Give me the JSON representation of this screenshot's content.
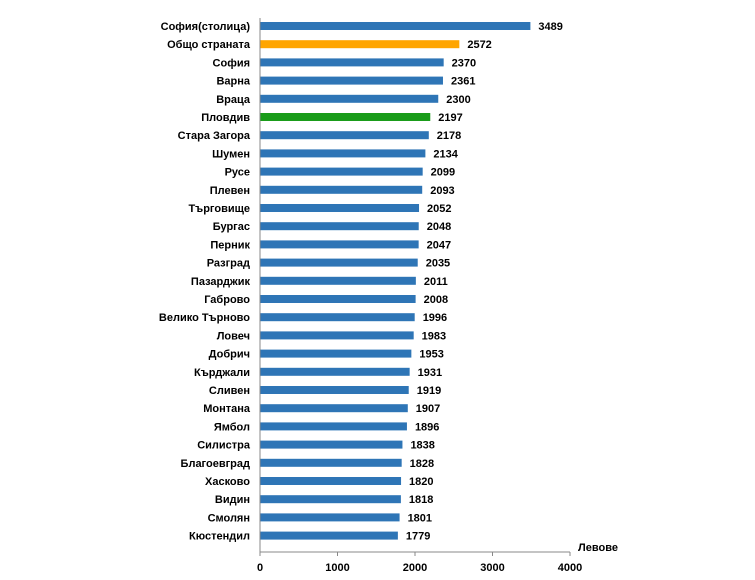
{
  "chart_data": {
    "type": "bar",
    "orientation": "horizontal",
    "categories": [
      "София(столица)",
      "Общо страната",
      "София",
      "Варна",
      "Враца",
      "Пловдив",
      "Стара Загора",
      "Шумен",
      "Русе",
      "Плевен",
      "Търговище",
      "Бургас",
      "Перник",
      "Разград",
      "Пазарджик",
      "Габрово",
      "Велико Търново",
      "Ловеч",
      "Добрич",
      "Кърджали",
      "Сливен",
      "Монтана",
      "Ямбол",
      "Силистра",
      "Благоевград",
      "Хасково",
      "Видин",
      "Смолян",
      "Кюстендил"
    ],
    "values": [
      3489,
      2572,
      2370,
      2361,
      2300,
      2197,
      2178,
      2134,
      2099,
      2093,
      2052,
      2048,
      2047,
      2035,
      2011,
      2008,
      1996,
      1983,
      1953,
      1931,
      1919,
      1907,
      1896,
      1838,
      1828,
      1820,
      1818,
      1801,
      1779
    ],
    "xlim": [
      0,
      4000
    ],
    "xticks": [
      0,
      1000,
      2000,
      3000,
      4000
    ],
    "xlabel": "Левове",
    "ylabel": "",
    "title": "",
    "grid": false,
    "colors": {
      "default": "#2E75B6",
      "highlight_total": "#FFA500",
      "highlight_plovdiv": "#1A9C1A"
    },
    "highlights": {
      "Общо страната": "highlight_total",
      "Пловдив": "highlight_plovdiv"
    }
  }
}
